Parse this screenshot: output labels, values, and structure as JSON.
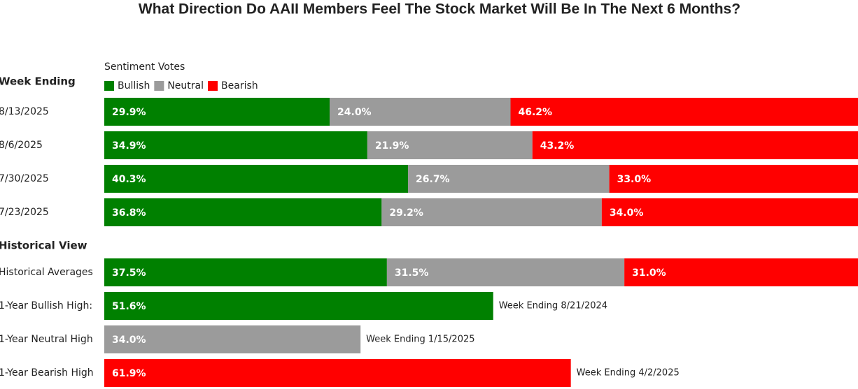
{
  "chart_data": {
    "type": "stacked-bar",
    "title": "What Direction Do AAII Members Feel The Stock Market Will Be In The Next 6 Months?",
    "legend_title": "Sentiment Votes",
    "xlim": [
      0,
      100
    ],
    "series": [
      {
        "name": "Bullish",
        "color": "#008000"
      },
      {
        "name": "Neutral",
        "color": "#9b9b9b"
      },
      {
        "name": "Bearish",
        "color": "#ff0000"
      }
    ],
    "groups": [
      {
        "label": "Week Ending",
        "categories": [
          "8/13/2025",
          "8/6/2025",
          "7/30/2025",
          "7/23/2025"
        ],
        "series": [
          {
            "values": [
              29.9,
              34.9,
              40.3,
              36.8
            ],
            "value_labels": [
              "29.9%",
              "34.9%",
              "40.3%",
              "36.8%"
            ]
          },
          {
            "values": [
              24.0,
              21.9,
              26.7,
              29.2
            ],
            "value_labels": [
              "24.0%",
              "21.9%",
              "26.7%",
              "29.2%"
            ]
          },
          {
            "values": [
              46.2,
              43.2,
              33.0,
              34.0
            ],
            "value_labels": [
              "46.2%",
              "43.2%",
              "33.0%",
              "34.0%"
            ]
          }
        ]
      },
      {
        "label": "Historical View",
        "categories": [
          "Historical Averages",
          "1-Year Bullish High:",
          "1-Year Neutral High",
          "1-Year Bearish High"
        ],
        "series": [
          {
            "values": [
              37.5,
              51.6,
              null,
              null
            ],
            "value_labels": [
              "37.5%",
              "51.6%",
              null,
              null
            ]
          },
          {
            "values": [
              31.5,
              null,
              34.0,
              null
            ],
            "value_labels": [
              "31.5%",
              null,
              "34.0%",
              null
            ]
          },
          {
            "values": [
              31.0,
              null,
              null,
              61.9
            ],
            "value_labels": [
              "31.0%",
              null,
              null,
              "61.9%"
            ]
          }
        ],
        "annotations": [
          null,
          "Week Ending 8/21/2024",
          "Week Ending 1/15/2025",
          "Week Ending 4/2/2025"
        ]
      }
    ]
  }
}
